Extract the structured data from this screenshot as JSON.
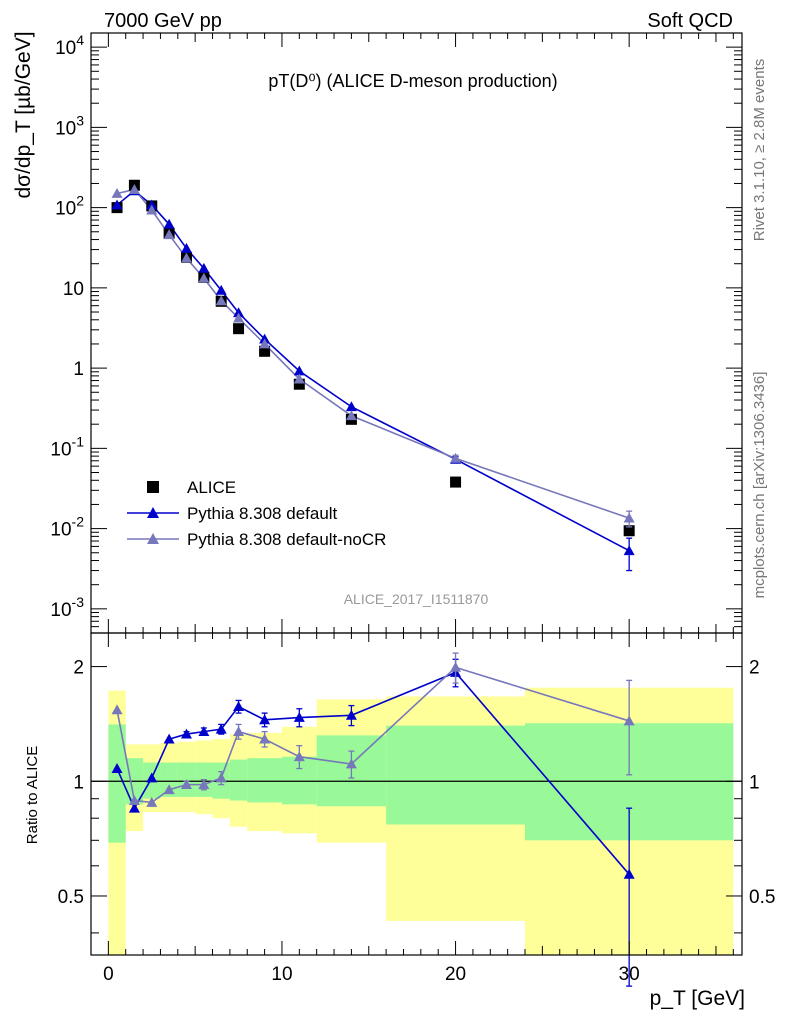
{
  "header": {
    "left": "7000 GeV pp",
    "right": "Soft QCD"
  },
  "side": {
    "rivet": "Rivet 3.1.10, ≥ 2.8M events",
    "mcplots": "mcplots.cern.ch [arXiv:1306.3436]"
  },
  "chart_data": {
    "type": "line",
    "title": "pT(D⁰) (ALICE D-meson production)",
    "analysis_label": "ALICE_2017_I1511870",
    "xlabel": "p_T [GeV]",
    "xlim": [
      -1,
      36.5
    ],
    "x_ticks": [
      0,
      10,
      20,
      30
    ],
    "main": {
      "ylabel": "dσ/dp_T [µb/GeV]",
      "yscale": "log",
      "ylim": [
        0.0005,
        15000
      ],
      "y_ticks": [
        {
          "value": 0.001,
          "base": "10",
          "exp": "-3"
        },
        {
          "value": 0.01,
          "base": "10",
          "exp": "-2"
        },
        {
          "value": 0.1,
          "base": "10",
          "exp": "-1"
        },
        {
          "value": 1,
          "base": "1",
          "exp": ""
        },
        {
          "value": 10,
          "base": "10",
          "exp": ""
        },
        {
          "value": 100,
          "base": "10",
          "exp": "2"
        },
        {
          "value": 1000,
          "base": "10",
          "exp": "3"
        },
        {
          "value": 10000,
          "base": "10",
          "exp": "4"
        }
      ],
      "legend": {
        "placement": "bottom-left",
        "entries": [
          "ALICE",
          "Pythia 8.308 default",
          "Pythia 8.308 default-noCR"
        ]
      },
      "series": [
        {
          "name": "ALICE",
          "color": "#000000",
          "marker": "square",
          "x": [
            0.5,
            1.5,
            2.5,
            3.5,
            4.5,
            5.5,
            6.5,
            7.5,
            9,
            11,
            14,
            20,
            30
          ],
          "y": [
            100,
            190,
            105,
            48,
            24,
            13.5,
            6.8,
            3.1,
            1.62,
            0.63,
            0.23,
            0.038,
            0.0094
          ]
        },
        {
          "name": "Pythia 8.308 default",
          "color": "#0000cc",
          "marker": "triangle",
          "x": [
            0.5,
            1.5,
            2.5,
            3.5,
            4.5,
            5.5,
            6.5,
            7.5,
            9,
            11,
            14,
            20,
            30
          ],
          "y": [
            108,
            162,
            108,
            62,
            31,
            17.5,
            9.3,
            4.9,
            2.3,
            0.92,
            0.33,
            0.073,
            0.0053
          ],
          "err": [
            0,
            0,
            0,
            0,
            0,
            0,
            0,
            0,
            0,
            0,
            0,
            0.006,
            0.0023
          ]
        },
        {
          "name": "Pythia 8.308 default-noCR",
          "color": "#7777bb",
          "marker": "triangle",
          "x": [
            0.5,
            1.5,
            2.5,
            3.5,
            4.5,
            5.5,
            6.5,
            7.5,
            9,
            11,
            14,
            20,
            30
          ],
          "y": [
            150,
            168,
            93,
            46,
            23.5,
            13.2,
            6.9,
            4.2,
            2.0,
            0.73,
            0.255,
            0.075,
            0.0135
          ],
          "err": [
            0,
            0,
            0,
            0,
            0,
            0,
            0,
            0,
            0,
            0,
            0,
            0.007,
            0.003
          ]
        }
      ]
    },
    "ratio": {
      "ylabel": "Ratio to ALICE",
      "yscale": "log",
      "ylim": [
        0.35,
        2.45
      ],
      "y_ticks": [
        0.5,
        1,
        2
      ],
      "band_edges": [
        0,
        1,
        2,
        3,
        4,
        5,
        6,
        7,
        8,
        10,
        12,
        16,
        24,
        36
      ],
      "inner_band": {
        "color": "#99f999",
        "low": [
          0.69,
          0.87,
          0.9,
          0.91,
          0.91,
          0.91,
          0.9,
          0.89,
          0.88,
          0.87,
          0.86,
          0.77,
          0.7
        ],
        "high": [
          1.41,
          1.15,
          1.12,
          1.12,
          1.12,
          1.12,
          1.12,
          1.14,
          1.15,
          1.16,
          1.32,
          1.4,
          1.42
        ]
      },
      "outer_band": {
        "color": "#ffff99",
        "low": [
          0.3,
          0.74,
          0.83,
          0.83,
          0.83,
          0.82,
          0.8,
          0.76,
          0.74,
          0.73,
          0.69,
          0.43,
          0.3
        ],
        "high": [
          1.73,
          1.25,
          1.25,
          1.26,
          1.27,
          1.28,
          1.29,
          1.33,
          1.34,
          1.39,
          1.64,
          1.67,
          1.76
        ]
      },
      "series": [
        {
          "name": "Pythia 8.308 default",
          "color": "#0000cc",
          "x": [
            0.5,
            1.5,
            2.5,
            3.5,
            4.5,
            5.5,
            6.5,
            7.5,
            9,
            11,
            14,
            20,
            30
          ],
          "y": [
            1.08,
            0.85,
            1.02,
            1.29,
            1.33,
            1.35,
            1.37,
            1.57,
            1.45,
            1.47,
            1.49,
            1.93,
            0.57
          ],
          "err": [
            0,
            0,
            0,
            0,
            0.02,
            0.03,
            0.04,
            0.06,
            0.06,
            0.08,
            0.09,
            0.16,
            0.28
          ]
        },
        {
          "name": "Pythia 8.308 default-noCR",
          "color": "#7777bb",
          "x": [
            0.5,
            1.5,
            2.5,
            3.5,
            4.5,
            5.5,
            6.5,
            7.5,
            9,
            11,
            14,
            20,
            30
          ],
          "y": [
            1.54,
            0.89,
            0.88,
            0.95,
            0.98,
            0.98,
            1.02,
            1.35,
            1.29,
            1.16,
            1.11,
            1.99,
            1.44
          ],
          "err": [
            0,
            0,
            0,
            0,
            0.02,
            0.03,
            0.04,
            0.06,
            0.06,
            0.08,
            0.09,
            0.18,
            0.4
          ]
        }
      ]
    }
  }
}
